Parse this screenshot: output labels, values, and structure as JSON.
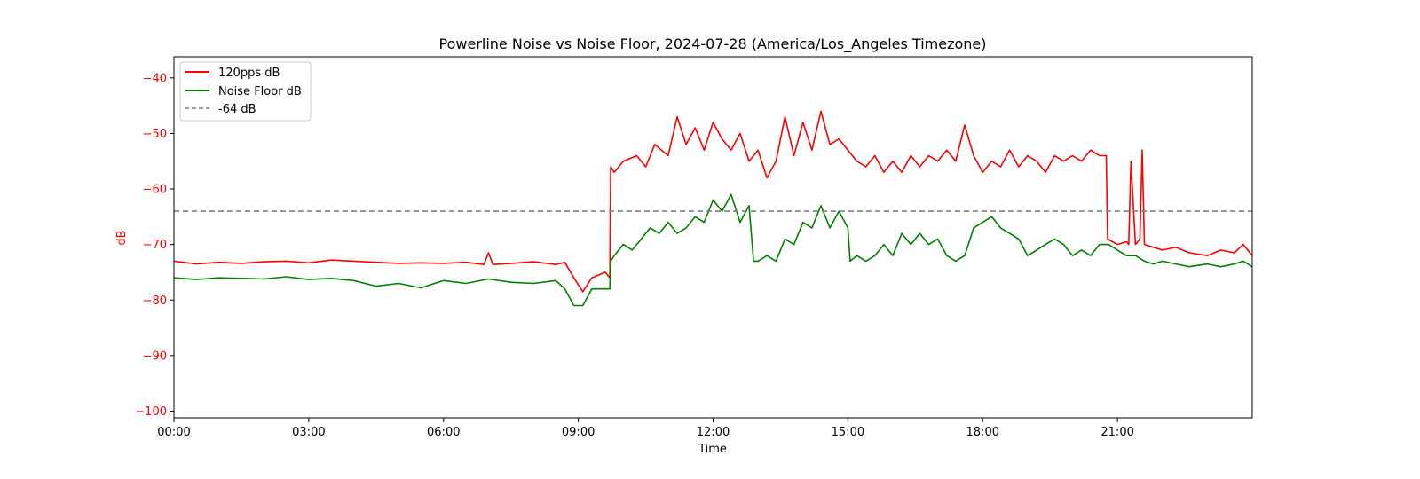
{
  "chart_data": {
    "type": "line",
    "title": "Powerline Noise vs Noise Floor, 2024-07-28 (America/Los_Angeles Timezone)",
    "xlabel": "Time",
    "ylabel": "dB",
    "ylabel_color": "#ff0000",
    "yticklabel_color": "#ff0000",
    "xlim": [
      0,
      24
    ],
    "ylim": [
      -101.2,
      -36.2
    ],
    "x_tick_labels": [
      "00:00",
      "03:00",
      "06:00",
      "09:00",
      "12:00",
      "15:00",
      "18:00",
      "21:00"
    ],
    "x_tick_values": [
      0,
      3,
      6,
      9,
      12,
      15,
      18,
      21
    ],
    "y_tick_values": [
      -40,
      -50,
      -60,
      -70,
      -80,
      -90,
      -100
    ],
    "y_tick_labels": [
      "−40",
      "−50",
      "−60",
      "−70",
      "−80",
      "−90",
      "−100"
    ],
    "grid": false,
    "legend_position": "upper-left",
    "reference_line": {
      "name": "-64 dB",
      "y": -64,
      "color": "#808080",
      "style": "dashed"
    },
    "series": [
      {
        "name": "120pps dB",
        "color": "#ff0000",
        "x": [
          0,
          0.5,
          1,
          1.5,
          2,
          2.5,
          3,
          3.5,
          4,
          4.5,
          5,
          5.5,
          6,
          6.5,
          6.9,
          7,
          7.1,
          7.5,
          8,
          8.5,
          8.7,
          8.9,
          9.1,
          9.3,
          9.6,
          9.7,
          9.72,
          9.8,
          10,
          10.3,
          10.5,
          10.7,
          11,
          11.2,
          11.4,
          11.6,
          11.8,
          12,
          12.2,
          12.4,
          12.6,
          12.8,
          13,
          13.2,
          13.4,
          13.6,
          13.8,
          14,
          14.2,
          14.4,
          14.6,
          14.8,
          15,
          15.2,
          15.4,
          15.6,
          15.8,
          16,
          16.2,
          16.4,
          16.6,
          16.8,
          17,
          17.2,
          17.4,
          17.6,
          17.8,
          18,
          18.2,
          18.4,
          18.6,
          18.8,
          19,
          19.2,
          19.4,
          19.6,
          19.8,
          20,
          20.2,
          20.4,
          20.6,
          20.75,
          20.78,
          21,
          21.2,
          21.25,
          21.3,
          21.4,
          21.5,
          21.55,
          21.6,
          21.8,
          22,
          22.3,
          22.6,
          23,
          23.3,
          23.6,
          23.8,
          24
        ],
        "values": [
          -73,
          -73.5,
          -73.2,
          -73.4,
          -73.1,
          -73,
          -73.3,
          -72.8,
          -73,
          -73.2,
          -73.4,
          -73.3,
          -73.4,
          -73.2,
          -73.6,
          -71.5,
          -73.6,
          -73.4,
          -73.1,
          -73.6,
          -73.2,
          -76,
          -78.5,
          -76,
          -75,
          -76,
          -56,
          -57,
          -55,
          -54,
          -56,
          -52,
          -54,
          -47,
          -52,
          -49,
          -53,
          -48,
          -51,
          -53,
          -50,
          -55,
          -53,
          -58,
          -55,
          -47,
          -54,
          -48,
          -53,
          -46,
          -52,
          -51,
          -53,
          -55,
          -56,
          -54,
          -57,
          -55,
          -57,
          -54,
          -56,
          -54,
          -55,
          -53,
          -55,
          -48.5,
          -54,
          -57,
          -55,
          -56,
          -53,
          -56,
          -54,
          -55,
          -57,
          -54,
          -55,
          -54,
          -55,
          -53,
          -54,
          -54,
          -69,
          -70,
          -69.5,
          -70,
          -55,
          -70,
          -69,
          -53,
          -70,
          -70.5,
          -71,
          -70.5,
          -71.5,
          -72,
          -71,
          -71.5,
          -70,
          -72
        ]
      },
      {
        "name": "Noise Floor dB",
        "color": "#008000",
        "x": [
          0,
          0.5,
          1,
          1.5,
          2,
          2.5,
          3,
          3.5,
          4,
          4.5,
          5,
          5.5,
          6,
          6.5,
          7,
          7.5,
          8,
          8.5,
          8.7,
          8.9,
          9.1,
          9.3,
          9.6,
          9.7,
          9.72,
          9.8,
          10,
          10.2,
          10.4,
          10.6,
          10.8,
          11,
          11.2,
          11.4,
          11.6,
          11.8,
          12,
          12.2,
          12.4,
          12.6,
          12.8,
          12.9,
          13,
          13.2,
          13.4,
          13.6,
          13.8,
          14,
          14.2,
          14.4,
          14.6,
          14.8,
          15,
          15.05,
          15.2,
          15.4,
          15.6,
          15.8,
          16,
          16.2,
          16.4,
          16.6,
          16.8,
          17,
          17.2,
          17.4,
          17.6,
          17.8,
          18,
          18.2,
          18.4,
          18.6,
          18.8,
          19,
          19.2,
          19.4,
          19.6,
          19.8,
          20,
          20.2,
          20.4,
          20.6,
          20.8,
          21,
          21.2,
          21.4,
          21.6,
          21.8,
          22,
          22.3,
          22.6,
          23,
          23.3,
          23.6,
          23.8,
          24
        ],
        "values": [
          -76,
          -76.3,
          -76,
          -76.1,
          -76.2,
          -75.8,
          -76.3,
          -76.1,
          -76.5,
          -77.5,
          -77,
          -77.8,
          -76.5,
          -77,
          -76.2,
          -76.8,
          -77,
          -76.5,
          -78,
          -81,
          -81,
          -78,
          -78,
          -78,
          -73,
          -72,
          -70,
          -71,
          -69,
          -67,
          -68,
          -66,
          -68,
          -67,
          -65,
          -66,
          -62,
          -64,
          -61,
          -66,
          -63,
          -73,
          -73,
          -72,
          -73,
          -69,
          -70,
          -66,
          -67,
          -63,
          -67,
          -64,
          -67,
          -73,
          -72,
          -73,
          -72,
          -70,
          -72,
          -68,
          -70,
          -68,
          -70,
          -69,
          -72,
          -73,
          -72,
          -67,
          -66,
          -65,
          -67,
          -68,
          -69,
          -72,
          -71,
          -70,
          -69,
          -70,
          -72,
          -71,
          -72,
          -70,
          -70,
          -71,
          -72,
          -72,
          -73,
          -73.5,
          -73,
          -73.5,
          -74,
          -73.5,
          -74,
          -73.5,
          -73,
          -74
        ]
      }
    ]
  }
}
